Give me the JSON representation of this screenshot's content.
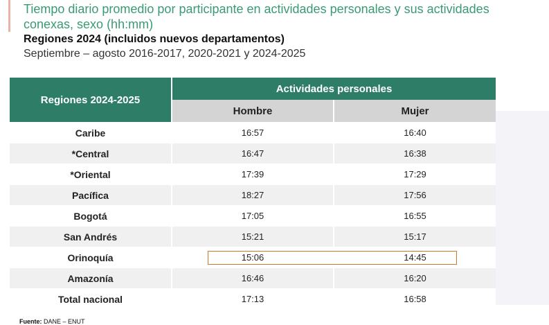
{
  "title_line1": "Tiempo diario promedio por participante en actividades personales y sus actividades",
  "title_line2": "conexas, sexo (hh:mm)",
  "subtitle": "Regiones 2024 (incluidos nuevos departamentos)",
  "period": "Septiembre – agosto 2016-2017, 2020-2021 y 2024-2025",
  "table": {
    "region_header": "Regiones 2024-2025",
    "group_header": "Actividades personales",
    "col_men": "Hombre",
    "col_women": "Mujer",
    "rows": [
      {
        "region": "Caribe",
        "men": "16:57",
        "women": "16:40"
      },
      {
        "region": "*Central",
        "men": "16:47",
        "women": "16:38"
      },
      {
        "region": "*Oriental",
        "men": "17:39",
        "women": "17:29"
      },
      {
        "region": "Pacífica",
        "men": "18:27",
        "women": "17:56"
      },
      {
        "region": "Bogotá",
        "men": "17:05",
        "women": "16:55"
      },
      {
        "region": "San Andrés",
        "men": "15:21",
        "women": "15:17"
      },
      {
        "region": "Orinoquía",
        "men": "15:06",
        "women": "14:45"
      },
      {
        "region": "Amazonía",
        "men": "16:46",
        "women": "16:20"
      },
      {
        "region": "Total nacional",
        "men": "17:13",
        "women": "16:58"
      }
    ]
  },
  "source_label": "Fuente:",
  "source_text": "DANE – ENUT",
  "colors": {
    "header_green": "#2e7d66",
    "title_green": "#3a9a73",
    "highlight_border": "#c8782a"
  }
}
